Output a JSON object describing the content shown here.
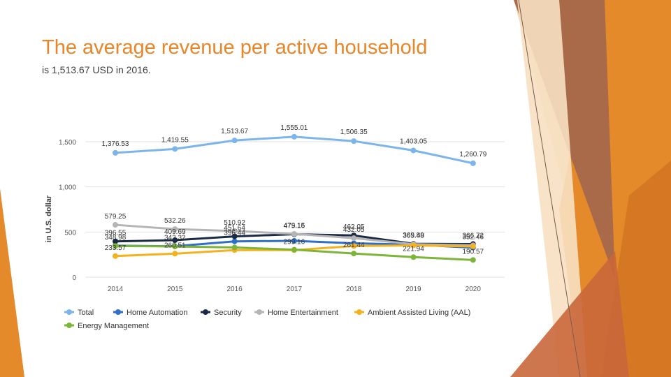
{
  "slide": {
    "title": "The average revenue per active household",
    "subtitle": "is 1,513.67 USD in 2016."
  },
  "theme": {
    "accent": "#e8862a",
    "deco_orange": "#e58a2a",
    "deco_brown": "#a85a3a",
    "deco_peach": "#f2c48a"
  },
  "chart_data": {
    "type": "line",
    "categories": [
      "2014",
      "2015",
      "2016",
      "2017",
      "2018",
      "2019",
      "2020"
    ],
    "ylabel": "in U.S. dollar",
    "ylim": [
      0,
      1600
    ],
    "yticks": [
      0,
      500,
      1000,
      1500
    ],
    "yticklabels": [
      "0",
      "500",
      "1,000",
      "1,500"
    ],
    "grid": true,
    "legend_position": "bottom",
    "series": [
      {
        "name": "Total",
        "color": "#7cb5ec",
        "values": [
          1376.53,
          1419.55,
          1513.67,
          1555.01,
          1506.35,
          1403.05,
          1260.79
        ],
        "labels": [
          "1,376.53",
          "1,419.55",
          "1,513.67",
          "1,555.01",
          "1,506.35",
          "1,403.05",
          "1,260.79"
        ]
      },
      {
        "name": "Home Automation",
        "color": "#2f6fc7",
        "values": [
          348.98,
          342.32,
          396.44,
          402.12,
          375.0,
          360.0,
          327.0
        ],
        "labels": [
          "348.98",
          "342.32",
          "396.44",
          "",
          "",
          "",
          ""
        ]
      },
      {
        "name": "Security",
        "color": "#1b2a44",
        "values": [
          396.55,
          409.69,
          451.64,
          475.16,
          462.05,
          369.89,
          366.72
        ],
        "labels": [
          "396.55",
          "409.69",
          "451.64",
          "475.16",
          "462.05",
          "369.89",
          "366.72"
        ]
      },
      {
        "name": "Home Entertainment",
        "color": "#b5b5b5",
        "values": [
          579.25,
          532.26,
          510.92,
          479.15,
          432.05,
          365.48,
          352.46
        ],
        "labels": [
          "579.25",
          "532.26",
          "510.92",
          "479.15",
          "432.05",
          "365.48",
          "352.46"
        ]
      },
      {
        "name": "Ambient Assisted Living (AAL)",
        "color": "#f5b21f",
        "values": [
          233.57,
          260.51,
          299.44,
          299.16,
          345.0,
          352.08,
          340.0
        ],
        "labels": [
          "233.57",
          "260.51",
          "",
          "299.16",
          "",
          "",
          ""
        ]
      },
      {
        "name": "Energy Management",
        "color": "#7cb53a",
        "values": [
          345.0,
          340.0,
          329.0,
          304.0,
          261.44,
          221.94,
          190.57
        ],
        "labels": [
          "",
          "",
          "",
          "",
          "261.44",
          "221.94",
          "190.57"
        ]
      }
    ]
  }
}
